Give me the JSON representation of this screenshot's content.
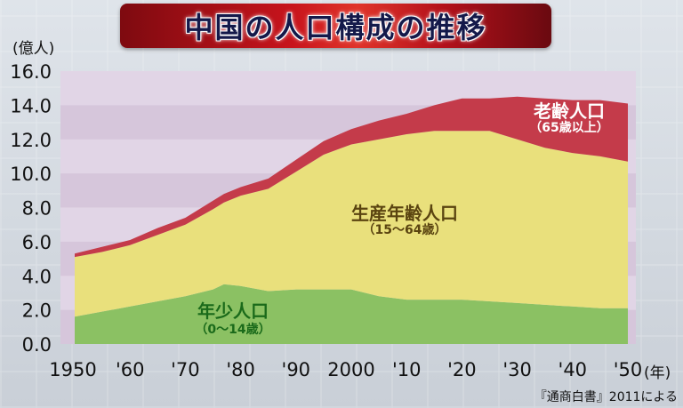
{
  "title": "中国の人口構成の推移",
  "source": "『通商白書』2011による",
  "chart_data": {
    "type": "area",
    "stacked": true,
    "y_unit": "(億人)",
    "x_unit": "(年)",
    "ylim": [
      0,
      16
    ],
    "yticks": [
      "0.0",
      "2.0",
      "4.0",
      "6.0",
      "8.0",
      "10.0",
      "12.0",
      "14.0",
      "16.0"
    ],
    "xlim": [
      1950,
      2050
    ],
    "xticks": [
      {
        "x": 1950,
        "label": "1950"
      },
      {
        "x": 1960,
        "label": "'60"
      },
      {
        "x": 1970,
        "label": "'70"
      },
      {
        "x": 1980,
        "label": "'80"
      },
      {
        "x": 1990,
        "label": "'90"
      },
      {
        "x": 2000,
        "label": "2000"
      },
      {
        "x": 2010,
        "label": "'10"
      },
      {
        "x": 2020,
        "label": "'20"
      },
      {
        "x": 2030,
        "label": "'30"
      },
      {
        "x": 2040,
        "label": "'40"
      },
      {
        "x": 2050,
        "label": "'50"
      }
    ],
    "x": [
      1950,
      1955,
      1960,
      1965,
      1970,
      1975,
      1977,
      1980,
      1985,
      1990,
      1995,
      2000,
      2005,
      2010,
      2015,
      2020,
      2025,
      2030,
      2035,
      2040,
      2045,
      2050
    ],
    "series": [
      {
        "name": "年少人口",
        "sublabel": "（0〜14歳）",
        "color": "#8bc163",
        "values": [
          1.6,
          1.9,
          2.2,
          2.5,
          2.8,
          3.2,
          3.5,
          3.4,
          3.1,
          3.2,
          3.2,
          3.2,
          2.8,
          2.6,
          2.6,
          2.6,
          2.5,
          2.4,
          2.3,
          2.2,
          2.1,
          2.1
        ]
      },
      {
        "name": "生産年齢人口",
        "sublabel": "（15〜64歳）",
        "color": "#e9e07c",
        "values": [
          3.5,
          3.5,
          3.6,
          3.9,
          4.2,
          4.7,
          4.8,
          5.3,
          6.0,
          6.9,
          7.9,
          8.5,
          9.2,
          9.7,
          9.9,
          9.9,
          10.0,
          9.6,
          9.2,
          9.0,
          8.9,
          8.6
        ]
      },
      {
        "name": "老齢人口",
        "sublabel": "（65歳以上）",
        "color": "#c43b4a",
        "values": [
          0.2,
          0.3,
          0.3,
          0.4,
          0.4,
          0.5,
          0.5,
          0.5,
          0.6,
          0.7,
          0.8,
          0.9,
          1.1,
          1.2,
          1.5,
          1.9,
          1.9,
          2.5,
          2.9,
          3.1,
          3.3,
          3.4
        ]
      }
    ]
  }
}
